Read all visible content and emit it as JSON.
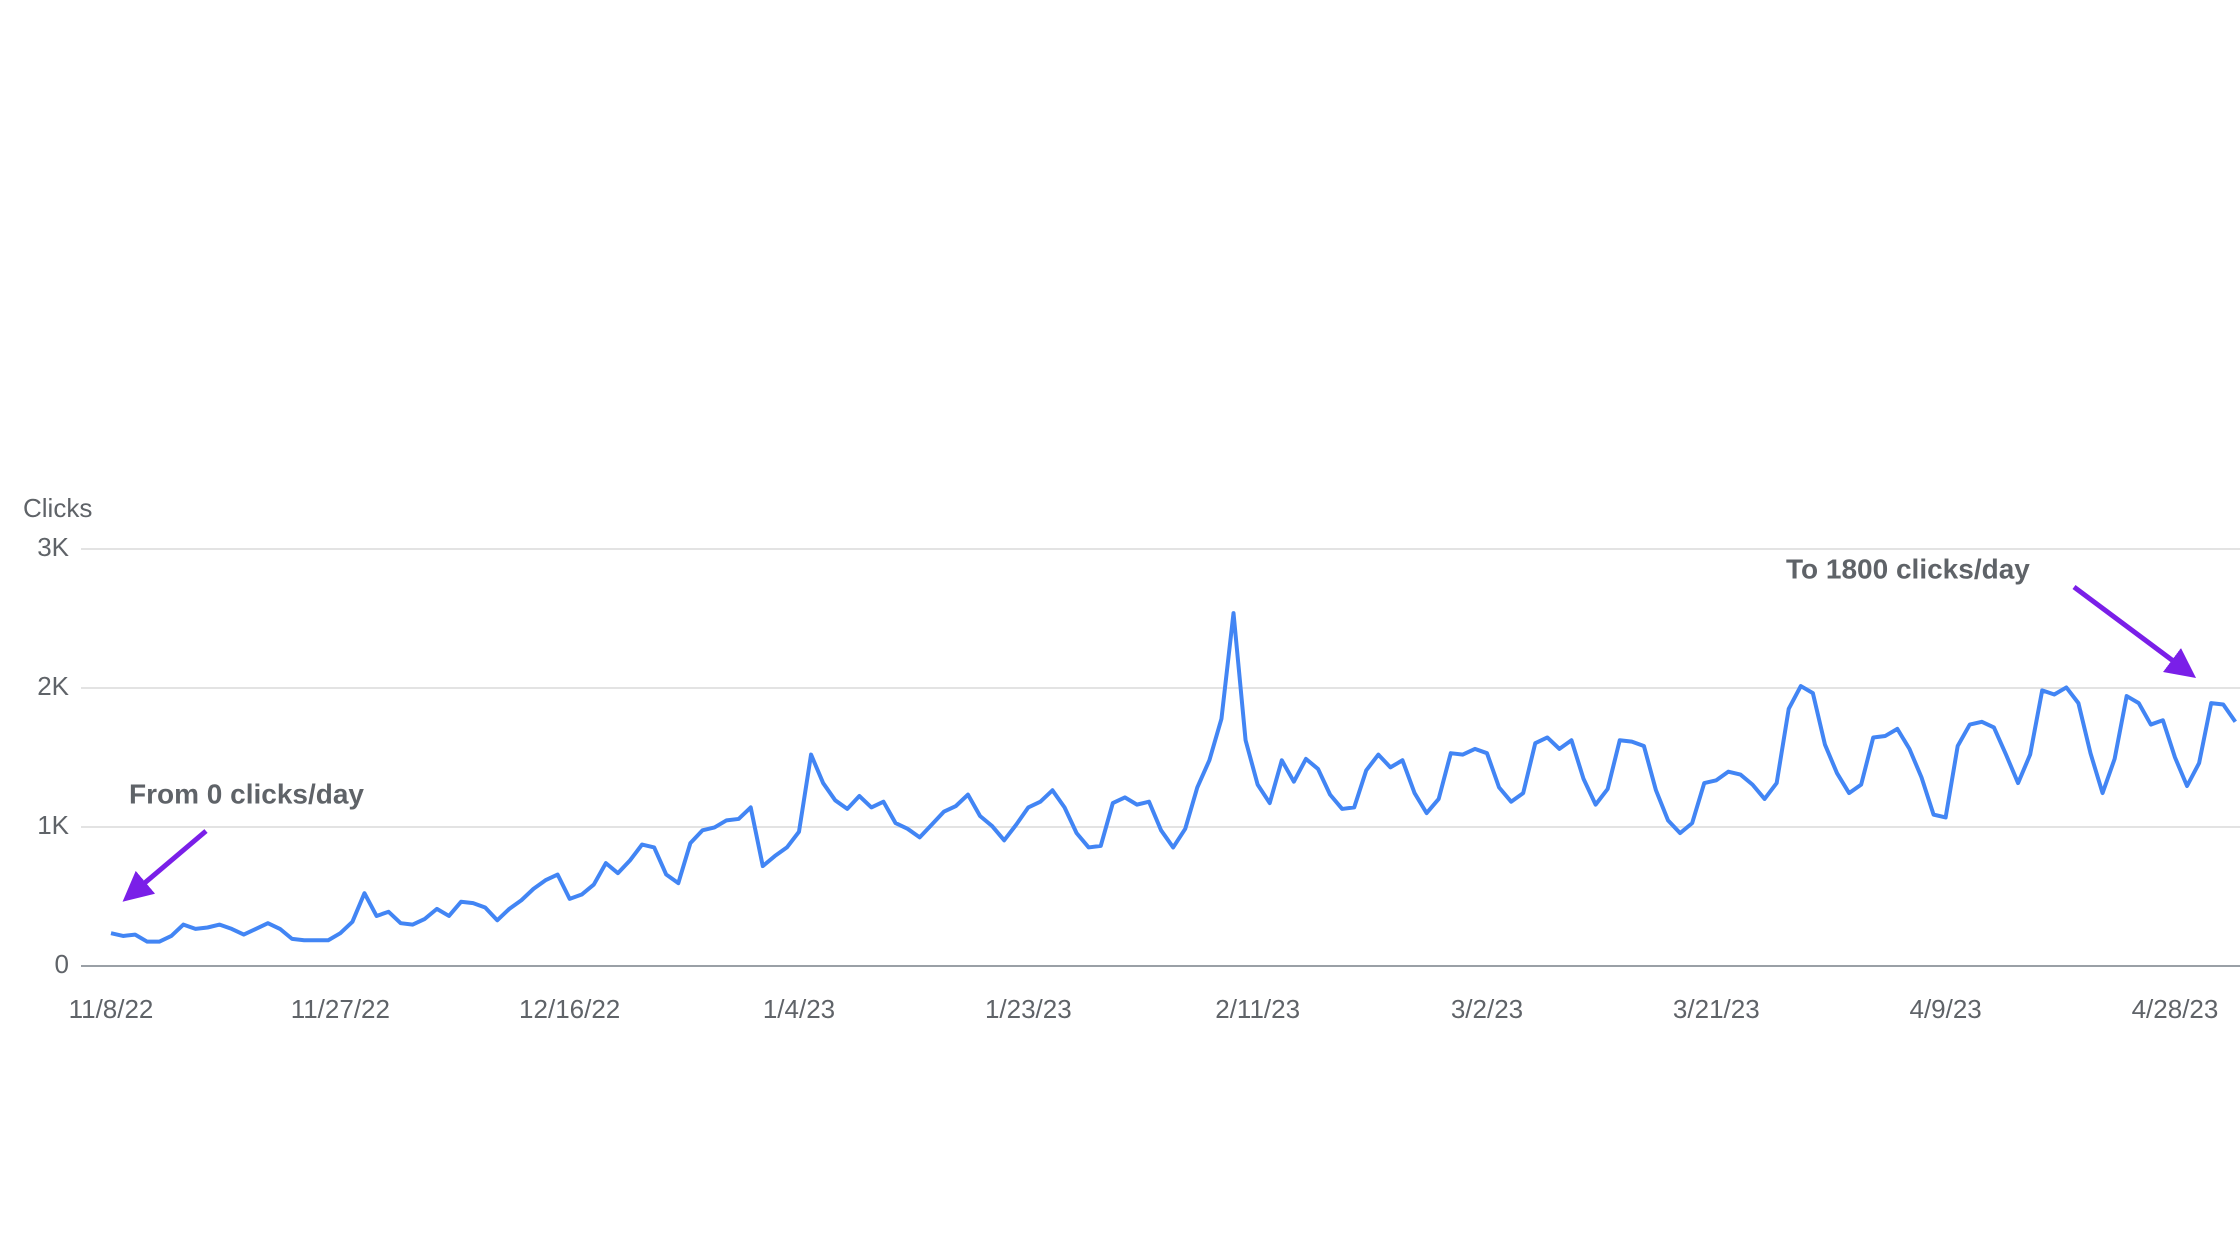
{
  "chart_data": {
    "type": "line",
    "y_label": "Clicks",
    "categories": [
      "11/8/22",
      null,
      null,
      null,
      null,
      null,
      null,
      null,
      null,
      null,
      null,
      null,
      null,
      null,
      null,
      null,
      null,
      null,
      null,
      "11/27/22",
      null,
      null,
      null,
      null,
      null,
      null,
      null,
      null,
      null,
      null,
      null,
      null,
      null,
      null,
      null,
      null,
      null,
      null,
      "12/16/22",
      null,
      null,
      null,
      null,
      null,
      null,
      null,
      null,
      null,
      null,
      null,
      null,
      null,
      null,
      null,
      null,
      null,
      null,
      "1/4/23",
      null,
      null,
      null,
      null,
      null,
      null,
      null,
      null,
      null,
      null,
      null,
      null,
      null,
      null,
      null,
      null,
      null,
      null,
      "1/23/23",
      null,
      null,
      null,
      null,
      null,
      null,
      null,
      null,
      null,
      null,
      null,
      null,
      null,
      null,
      null,
      null,
      null,
      null,
      "2/11/23",
      null,
      null,
      null,
      null,
      null,
      null,
      null,
      null,
      null,
      null,
      null,
      null,
      null,
      null,
      null,
      null,
      null,
      null,
      "3/2/23",
      null,
      null,
      null,
      null,
      null,
      null,
      null,
      null,
      null,
      null,
      null,
      null,
      null,
      null,
      null,
      null,
      null,
      null,
      "3/21/23",
      null,
      null,
      null,
      null,
      null,
      null,
      null,
      null,
      null,
      null,
      null,
      null,
      null,
      null,
      null,
      null,
      null,
      null,
      "4/9/23",
      null,
      null,
      null,
      null,
      null,
      null,
      null,
      null,
      null,
      null,
      null,
      null,
      null,
      null,
      null,
      null,
      null,
      null,
      "4/28/23",
      null,
      null,
      null,
      null,
      null
    ],
    "values": [
      236,
      216,
      226,
      175,
      175,
      216,
      298,
      267,
      277,
      298,
      267,
      226,
      267,
      308,
      267,
      195,
      185,
      185,
      185,
      236,
      318,
      524,
      360,
      390,
      308,
      298,
      339,
      411,
      360,
      462,
      452,
      421,
      329,
      411,
      473,
      555,
      617,
      658,
      483,
      514,
      586,
      740,
      668,
      760,
      874,
      853,
      658,
      596,
      884,
      976,
      997,
      1048,
      1058,
      1141,
      719,
      791,
      853,
      966,
      1521,
      1316,
      1192,
      1130,
      1223,
      1141,
      1182,
      1028,
      987,
      925,
      1017,
      1110,
      1151,
      1233,
      1079,
      1007,
      904,
      1017,
      1141,
      1182,
      1264,
      1141,
      956,
      853,
      864,
      1172,
      1213,
      1161,
      1182,
      976,
      853,
      987,
      1285,
      1480,
      1778,
      2539,
      1624,
      1305,
      1172,
      1480,
      1326,
      1490,
      1418,
      1233,
      1130,
      1141,
      1408,
      1521,
      1429,
      1480,
      1244,
      1100,
      1202,
      1531,
      1521,
      1562,
      1531,
      1285,
      1182,
      1244,
      1603,
      1644,
      1562,
      1624,
      1346,
      1161,
      1274,
      1624,
      1614,
      1583,
      1264,
      1048,
      956,
      1028,
      1316,
      1336,
      1398,
      1377,
      1305,
      1202,
      1316,
      1850,
      2014,
      1963,
      1593,
      1387,
      1244,
      1305,
      1644,
      1655,
      1706,
      1562,
      1357,
      1089,
      1069,
      1583,
      1737,
      1757,
      1716,
      1521,
      1316,
      1521,
      1983,
      1953,
      2004,
      1891,
      1531,
      1244,
      1490,
      1942,
      1891,
      1737,
      1768,
      1501,
      1295,
      1460,
      1891,
      1881,
      1757
    ],
    "color": "#4285f4",
    "ylim": [
      0,
      3000
    ],
    "yticks": [
      0,
      {
        "value": 1000,
        "label": "1K"
      },
      {
        "value": 2000,
        "label": "2K"
      },
      {
        "value": 3000,
        "label": "3K"
      }
    ],
    "grid": true,
    "annotations": [
      {
        "text": "From 0 clicks/day",
        "color": "#7a1fe8"
      },
      {
        "text": "To 1800 clicks/day",
        "color": "#7a1fe8"
      }
    ]
  }
}
